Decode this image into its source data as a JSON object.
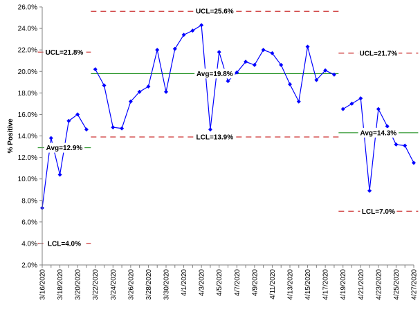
{
  "chart_data": {
    "type": "line",
    "title": "",
    "xlabel": "",
    "ylabel": "% Positive",
    "ylim": [
      2.0,
      26.0
    ],
    "y_ticks": [
      "2.0%",
      "4.0%",
      "6.0%",
      "8.0%",
      "10.0%",
      "12.0%",
      "14.0%",
      "16.0%",
      "18.0%",
      "20.0%",
      "22.0%",
      "24.0%",
      "26.0%"
    ],
    "x_tick_labels": [
      "3/16/2020",
      "3/18/2020",
      "3/20/2020",
      "3/22/2020",
      "3/24/2020",
      "3/26/2020",
      "3/28/2020",
      "3/30/2020",
      "4/1/2020",
      "4/3/2020",
      "4/5/2020",
      "4/7/2020",
      "4/9/2020",
      "4/11/2020",
      "4/13/2020",
      "4/15/2020",
      "4/17/2020",
      "4/19/2020",
      "4/21/2020",
      "4/23/2020",
      "4/25/2020",
      "4/27/2020"
    ],
    "grid": false,
    "legend": "none",
    "series": [
      {
        "color": "#0000ff",
        "segments": [
          {
            "start": "3/16/2020",
            "values": [
              7.3,
              13.8,
              10.4,
              15.4,
              16.0,
              14.6
            ]
          },
          {
            "start": "3/22/2020",
            "values": [
              20.2,
              18.7,
              14.8,
              14.7,
              17.2,
              18.1,
              18.6,
              22.0,
              18.1,
              22.1,
              23.4,
              23.8,
              24.3,
              14.6,
              21.8,
              19.1,
              19.9,
              20.9,
              20.6,
              22.0,
              21.7,
              20.6,
              18.8,
              17.2,
              22.3,
              19.2,
              20.1,
              19.7
            ]
          },
          {
            "start": "4/19/2020",
            "values": [
              16.5,
              17.0,
              17.5,
              8.9,
              16.5,
              14.9,
              13.2,
              13.1,
              11.5
            ]
          }
        ]
      }
    ],
    "control_limits": [
      {
        "start": "3/16/2020",
        "end": "3/21/2020",
        "ucl": 21.8,
        "avg": 12.9,
        "lcl": 4.0,
        "ucl_label": "UCL=21.8%",
        "avg_label": "Avg=12.9%",
        "lcl_label": "LCL=4.0%"
      },
      {
        "start": "3/22/2020",
        "end": "4/18/2020",
        "ucl": 25.6,
        "avg": 19.8,
        "lcl": 13.9,
        "ucl_label": "UCL=25.6%",
        "avg_label": "Avg=19.8%",
        "lcl_label": "LCL=13.9%"
      },
      {
        "start": "4/19/2020",
        "end": "4/27/2020",
        "ucl": 21.7,
        "avg": 14.3,
        "lcl": 7.0,
        "ucl_label": "UCL=21.7%",
        "avg_label": "Avg=14.3%",
        "lcl_label": "LCL=7.0%"
      }
    ],
    "colors": {
      "series": "#0000ff",
      "control_limit": "#c00000",
      "average": "#008000",
      "axis": "#808080",
      "text": "#000000"
    }
  }
}
